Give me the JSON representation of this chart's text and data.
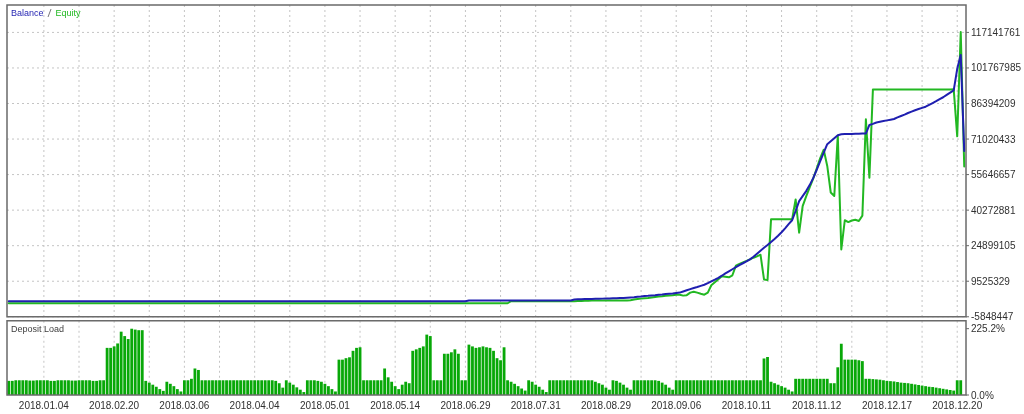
{
  "chart_data": [
    {
      "type": "line",
      "categories": [
        null,
        null,
        null,
        null,
        null,
        null,
        null,
        null,
        null,
        null,
        null,
        null,
        null,
        null,
        null,
        null,
        null,
        null,
        null,
        null,
        null,
        null,
        null,
        null,
        null,
        null,
        null,
        null,
        null,
        null,
        null,
        null,
        null,
        null,
        null,
        null,
        null,
        null,
        null,
        null,
        null,
        null,
        null,
        null,
        null,
        null,
        null,
        null,
        null,
        null,
        null,
        null,
        null,
        null,
        null,
        null,
        null,
        null,
        null,
        null,
        null,
        null,
        null,
        null,
        null,
        null,
        null,
        null,
        null,
        null,
        null,
        null,
        null,
        null,
        null,
        null,
        null,
        null,
        null,
        null,
        null,
        null,
        null,
        null,
        null,
        null,
        null,
        null,
        null,
        null,
        null,
        null,
        null,
        null,
        null,
        null,
        null,
        null,
        null,
        null,
        null,
        null,
        null,
        null,
        null,
        null,
        null,
        null,
        null,
        null,
        null,
        null,
        null,
        null,
        null,
        null,
        null,
        null,
        null,
        null,
        null,
        null,
        null,
        null,
        null,
        null,
        null,
        null,
        null,
        null,
        null,
        null,
        null,
        null,
        null,
        null,
        null,
        null,
        null,
        null,
        null,
        null,
        null,
        null,
        null,
        null,
        null,
        null,
        null,
        null,
        null,
        null,
        null,
        null,
        null,
        null,
        null,
        null,
        null,
        null,
        null,
        null,
        null,
        null,
        null,
        null,
        null,
        null,
        null,
        null,
        null,
        null,
        null,
        null,
        null,
        null,
        null,
        null,
        null,
        null,
        null,
        null,
        null,
        null,
        null,
        null,
        null,
        null,
        null,
        null,
        null,
        null,
        null,
        null,
        null,
        null,
        null,
        null,
        null,
        null,
        null,
        null,
        null,
        null,
        null,
        null,
        null,
        null,
        null,
        null,
        null,
        null,
        null,
        null,
        null,
        null,
        null,
        null,
        null,
        null,
        null,
        null,
        null,
        null,
        null,
        null,
        null,
        null,
        null,
        null,
        null,
        null,
        null,
        null,
        null,
        null,
        null,
        null,
        null,
        null,
        null,
        null,
        null,
        null,
        null,
        null,
        null,
        null,
        null,
        null,
        null,
        null,
        null,
        null,
        null,
        null,
        null,
        null,
        null,
        null,
        null,
        null,
        null,
        null,
        null,
        null,
        null,
        null,
        null,
        null,
        null,
        null,
        null
      ],
      "ylim": [
        -5848447,
        129000000
      ],
      "yticks": [
        -5848447,
        9525329,
        24899105,
        40272881,
        55646657,
        71020433,
        86394209,
        101767985,
        117141761
      ],
      "grid": true,
      "tick_labels": "y",
      "legend": "top left",
      "series": [
        {
          "name": "Balance",
          "color": "#1f1fb0",
          "values": [
            900000,
            900000,
            900000,
            900000,
            900000,
            900000,
            900000,
            900000,
            900000,
            900000,
            900000,
            900000,
            900000,
            900000,
            900000,
            900000,
            900000,
            900000,
            900000,
            900000,
            900000,
            900000,
            900000,
            900000,
            900000,
            900000,
            900000,
            900000,
            900000,
            900000,
            900000,
            900000,
            900000,
            900000,
            900000,
            900000,
            900000,
            900000,
            900000,
            900000,
            900000,
            900000,
            900000,
            900000,
            900000,
            900000,
            900000,
            900000,
            900000,
            900000,
            900000,
            900000,
            900000,
            900000,
            900000,
            900000,
            900000,
            900000,
            900000,
            900000,
            900000,
            900000,
            900000,
            900000,
            900000,
            900000,
            900000,
            900000,
            900000,
            900000,
            900000,
            900000,
            900000,
            900000,
            900000,
            900000,
            900000,
            900000,
            900000,
            900000,
            900000,
            900000,
            900000,
            900000,
            900000,
            900000,
            900000,
            900000,
            900000,
            900000,
            900000,
            900000,
            900000,
            900000,
            900000,
            900000,
            900000,
            900000,
            900000,
            900000,
            900000,
            900000,
            900000,
            900000,
            900000,
            900000,
            900000,
            900000,
            900000,
            900000,
            900000,
            900000,
            900000,
            900000,
            900000,
            900000,
            900000,
            900000,
            900000,
            900000,
            900000,
            900000,
            900000,
            900000,
            900000,
            900000,
            900000,
            900000,
            900000,
            900000,
            900000,
            1200000,
            1200000,
            1200000,
            1200000,
            1200000,
            1200000,
            1200000,
            1200000,
            1200000,
            1200000,
            1200000,
            1200000,
            1200000,
            1200000,
            1200000,
            1200000,
            1200000,
            1200000,
            1200000,
            1200000,
            1200000,
            1200000,
            1200000,
            1200000,
            1200000,
            1200000,
            1200000,
            1200000,
            1200000,
            1200000,
            1600000,
            1700000,
            1700000,
            1800000,
            1800000,
            1800000,
            1900000,
            1900000,
            2000000,
            2100000,
            2100000,
            2200000,
            2200000,
            2300000,
            2300000,
            2400000,
            2500000,
            2600000,
            2800000,
            2900000,
            3100000,
            3200000,
            3400000,
            3500000,
            3700000,
            3800000,
            4000000,
            4100000,
            4200000,
            4400000,
            4600000,
            5100000,
            5600000,
            6100000,
            6600000,
            7000000,
            7500000,
            8000000,
            8700000,
            9500000,
            10200000,
            11000000,
            11900000,
            12900000,
            13800000,
            14700000,
            15600000,
            16500000,
            17300000,
            18100000,
            19000000,
            20100000,
            21400000,
            22700000,
            24000000,
            25200000,
            26500000,
            27800000,
            29200000,
            30700000,
            32400000,
            34200000,
            35900000,
            39900000,
            44200000,
            46300000,
            48500000,
            51100000,
            54100000,
            57700000,
            61500000,
            65200000,
            68800000,
            70100000,
            71400000,
            72700000,
            73100000,
            73200000,
            73200000,
            73200000,
            73300000,
            73300000,
            73400000,
            73400000,
            77100000,
            77600000,
            78200000,
            78500000,
            78800000,
            79100000,
            79400000,
            79700000,
            80400000,
            81000000,
            81600000,
            82300000,
            82900000,
            83500000,
            84000000,
            84500000,
            85000000,
            85800000,
            86600000,
            87400000,
            88300000,
            89100000,
            90100000,
            91100000,
            92100000,
            101400000,
            107400000,
            65900000
          ]
        },
        {
          "name": "Equity",
          "color": "#22b822",
          "values": [
            0,
            0,
            0,
            0,
            0,
            0,
            0,
            0,
            0,
            0,
            0,
            0,
            0,
            0,
            0,
            0,
            0,
            0,
            0,
            0,
            0,
            0,
            0,
            0,
            0,
            0,
            0,
            0,
            0,
            0,
            0,
            0,
            0,
            0,
            0,
            0,
            0,
            0,
            0,
            0,
            0,
            0,
            0,
            0,
            0,
            0,
            0,
            0,
            0,
            0,
            0,
            0,
            0,
            0,
            0,
            0,
            0,
            0,
            0,
            0,
            0,
            0,
            0,
            0,
            0,
            0,
            0,
            0,
            0,
            0,
            0,
            0,
            0,
            0,
            0,
            0,
            0,
            0,
            0,
            0,
            0,
            0,
            0,
            0,
            0,
            0,
            0,
            0,
            0,
            0,
            0,
            0,
            0,
            0,
            0,
            0,
            0,
            0,
            0,
            0,
            0,
            0,
            0,
            0,
            0,
            0,
            0,
            0,
            0,
            0,
            0,
            0,
            0,
            0,
            0,
            0,
            0,
            0,
            0,
            0,
            0,
            0,
            0,
            0,
            0,
            0,
            0,
            0,
            0,
            0,
            0,
            0,
            0,
            0,
            0,
            0,
            0,
            0,
            0,
            0,
            0,
            0,
            0,
            900000,
            900000,
            900000,
            900000,
            900000,
            900000,
            900000,
            900000,
            900000,
            900000,
            900000,
            900000,
            900000,
            900000,
            900000,
            900000,
            900000,
            900000,
            900000,
            1000000,
            1000000,
            1100000,
            1100000,
            1200000,
            1200000,
            1200000,
            1200000,
            1200000,
            1200000,
            1200000,
            1200000,
            1200000,
            1200000,
            1200000,
            1300000,
            1600000,
            1800000,
            2000000,
            2200000,
            2300000,
            2500000,
            2700000,
            2900000,
            3000000,
            3200000,
            3400000,
            3500000,
            3700000,
            3700000,
            3300000,
            3500000,
            4600000,
            5000000,
            4600000,
            4100000,
            3700000,
            4600000,
            7800000,
            9100000,
            10400000,
            11700000,
            11500000,
            11200000,
            12100000,
            16300000,
            17000000,
            17700000,
            18300000,
            19000000,
            19700000,
            20300000,
            21000000,
            10300000,
            10000000,
            36300000,
            36300000,
            36300000,
            36300000,
            36300000,
            36300000,
            36300000,
            44900000,
            30500000,
            42000000,
            46200000,
            50100000,
            53900000,
            58200000,
            62800000,
            66400000,
            59400000,
            47900000,
            46400000,
            72400000,
            23300000,
            35900000,
            35100000,
            35800000,
            36100000,
            35600000,
            37900000,
            79600000,
            54300000,
            92500000,
            92500000,
            92500000,
            92500000,
            92500000,
            92500000,
            92500000,
            92500000,
            92500000,
            92500000,
            92500000,
            92500000,
            92500000,
            92500000,
            92500000,
            92500000,
            92500000,
            92500000,
            92500000,
            92500000,
            92500000,
            92500000,
            92500000,
            92600000,
            72200000,
            117300000,
            59200000
          ]
        }
      ]
    },
    {
      "type": "bar",
      "title": "Deposit Load",
      "color": "#08a808",
      "categories": [
        null,
        null,
        null,
        null,
        null,
        null,
        null,
        null,
        null,
        null,
        "2018.01.04",
        null,
        null,
        null,
        null,
        null,
        null,
        null,
        null,
        null,
        null,
        null,
        null,
        null,
        null,
        null,
        null,
        null,
        null,
        null,
        "2018.02.20",
        null,
        null,
        null,
        null,
        null,
        null,
        null,
        null,
        null,
        null,
        null,
        null,
        null,
        null,
        null,
        null,
        null,
        null,
        null,
        "2018.03.06",
        null,
        null,
        null,
        null,
        null,
        null,
        null,
        null,
        null,
        null,
        null,
        null,
        null,
        null,
        null,
        null,
        null,
        null,
        null,
        "2018.04.04",
        null,
        null,
        null,
        null,
        null,
        null,
        null,
        null,
        null,
        null,
        null,
        null,
        null,
        null,
        null,
        null,
        null,
        null,
        null,
        "2018.05.01",
        null,
        null,
        null,
        null,
        null,
        null,
        null,
        null,
        null,
        null,
        null,
        null,
        null,
        null,
        null,
        null,
        null,
        null,
        null,
        "2018.05.14",
        null,
        null,
        null,
        null,
        null,
        null,
        null,
        null,
        null,
        null,
        null,
        null,
        null,
        null,
        null,
        null,
        null,
        null,
        null,
        "2018.06.29",
        null,
        null,
        null,
        null,
        null,
        null,
        null,
        null,
        null,
        null,
        null,
        null,
        null,
        null,
        null,
        null,
        null,
        null,
        null,
        "2018.07.31",
        null,
        null,
        null,
        null,
        null,
        null,
        null,
        null,
        null,
        null,
        null,
        null,
        null,
        null,
        null,
        null,
        null,
        null,
        null,
        "2018.08.29",
        null,
        null,
        null,
        null,
        null,
        null,
        null,
        null,
        null,
        null,
        null,
        null,
        null,
        null,
        null,
        null,
        null,
        null,
        null,
        "2018.09.06",
        null,
        null,
        null,
        null,
        null,
        null,
        null,
        null,
        null,
        null,
        null,
        null,
        null,
        null,
        null,
        null,
        null,
        null,
        null,
        "2018.10.11",
        null,
        null,
        null,
        null,
        null,
        null,
        null,
        null,
        null,
        null,
        null,
        null,
        null,
        null,
        null,
        null,
        null,
        null,
        null,
        "2018.11.12",
        null,
        null,
        null,
        null,
        null,
        null,
        null,
        null,
        null,
        null,
        null,
        null,
        null,
        null,
        null,
        null,
        null,
        null,
        null,
        "2018.12.17",
        null,
        null,
        null,
        null,
        null,
        null,
        null,
        null,
        null,
        null,
        null,
        null,
        null,
        null,
        null,
        null,
        null,
        null,
        null,
        "2018.12.20",
        null,
        null
      ],
      "ylim": [
        0,
        252
      ],
      "yticks": [
        {
          "value": 0,
          "label": "0.0%"
        },
        {
          "value": 225.2,
          "label": "225.2%"
        }
      ],
      "grid": "x",
      "values": [
        48,
        48,
        50,
        50,
        50,
        50,
        49,
        49,
        50,
        50,
        50,
        50,
        48,
        48,
        50,
        50,
        50,
        50,
        49,
        49,
        50,
        50,
        50,
        50,
        48,
        48,
        50,
        50,
        160,
        160,
        165,
        175,
        215,
        200,
        190,
        225,
        222,
        220,
        220,
        48,
        42,
        35,
        28,
        20,
        14,
        45,
        38,
        30,
        20,
        12,
        50,
        50,
        55,
        90,
        85,
        50,
        50,
        50,
        50,
        50,
        50,
        50,
        50,
        50,
        50,
        50,
        50,
        50,
        50,
        50,
        50,
        50,
        50,
        50,
        50,
        50,
        48,
        40,
        25,
        50,
        42,
        35,
        26,
        18,
        10,
        50,
        50,
        50,
        48,
        45,
        38,
        30,
        20,
        12,
        120,
        120,
        125,
        128,
        150,
        160,
        162,
        50,
        50,
        50,
        50,
        50,
        50,
        90,
        60,
        45,
        30,
        20,
        35,
        45,
        40,
        150,
        155,
        160,
        165,
        205,
        200,
        50,
        50,
        50,
        140,
        140,
        145,
        155,
        140,
        50,
        50,
        171,
        165,
        160,
        162,
        165,
        162,
        160,
        150,
        125,
        118,
        162,
        50,
        45,
        38,
        30,
        22,
        15,
        50,
        45,
        35,
        28,
        18,
        10,
        50,
        50,
        50,
        50,
        50,
        50,
        50,
        50,
        50,
        50,
        50,
        50,
        50,
        45,
        40,
        35,
        25,
        18,
        50,
        48,
        42,
        35,
        25,
        18,
        50,
        50,
        50,
        50,
        50,
        50,
        50,
        48,
        42,
        35,
        25,
        18,
        50,
        50,
        50,
        50,
        50,
        50,
        50,
        50,
        50,
        50,
        50,
        50,
        50,
        50,
        50,
        50,
        50,
        50,
        50,
        50,
        50,
        50,
        50,
        50,
        50,
        124,
        129,
        45,
        40,
        35,
        30,
        25,
        18,
        12,
        55,
        55,
        55,
        55,
        55,
        55,
        55,
        55,
        55,
        55,
        40,
        40,
        94,
        174,
        120,
        120,
        120,
        120,
        118,
        115,
        55,
        55,
        54,
        53,
        52,
        50,
        48,
        47,
        46,
        44,
        42,
        41,
        40,
        38,
        36,
        34,
        32,
        30,
        28,
        27,
        25,
        23,
        21,
        19,
        17,
        15,
        50,
        50,
        null
      ]
    }
  ]
}
